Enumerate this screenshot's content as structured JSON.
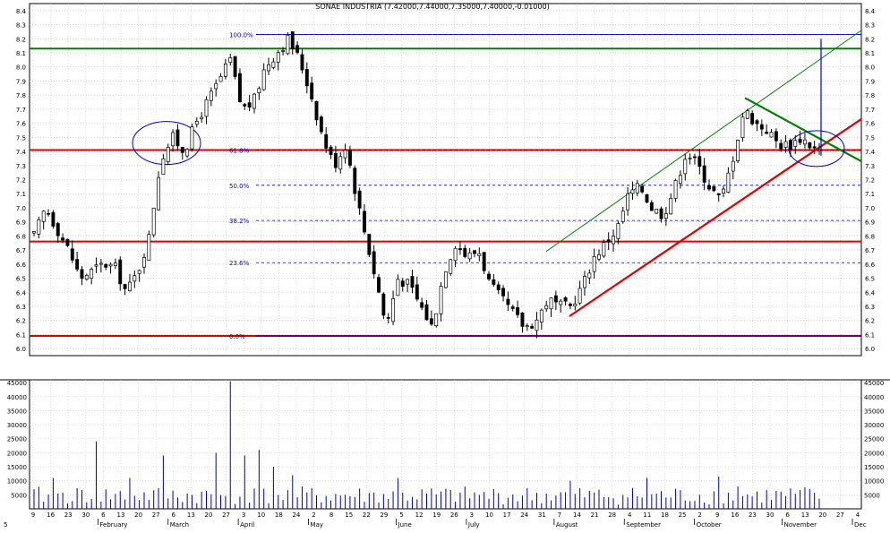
{
  "chart_data": [
    {
      "type": "candlestick",
      "title": "SONAE INDUSTRIA (7.42000,7.44000,7.35000,7.40000,-0.01000)",
      "ylim": [
        5.95,
        8.45
      ],
      "y_ticks": [
        "6.0",
        "6.1",
        "6.2",
        "6.3",
        "6.4",
        "6.5",
        "6.6",
        "6.7",
        "6.8",
        "6.9",
        "7.0",
        "7.1",
        "7.2",
        "7.3",
        "7.4",
        "7.5",
        "7.6",
        "7.7",
        "7.8",
        "7.9",
        "8.0",
        "8.1",
        "8.2",
        "8.3",
        "8.4"
      ],
      "axis_labels_both_sides": true,
      "grid": true,
      "x_start_label": "5",
      "days": [
        "9",
        "16",
        "23",
        "30",
        "6",
        "13",
        "20",
        "27",
        "6",
        "13",
        "20",
        "27",
        "3",
        "10",
        "18",
        "24",
        "2",
        "8",
        "15",
        "22",
        "29",
        "5",
        "12",
        "19",
        "26",
        "3",
        "10",
        "17",
        "24",
        "31",
        "7",
        "14",
        "21",
        "28",
        "4",
        "11",
        "18",
        "25",
        "2",
        "9",
        "16",
        "23",
        "30",
        "6",
        "13",
        "20",
        "27",
        "4"
      ],
      "months": [
        "February",
        "March",
        "April",
        "May",
        "June",
        "July",
        "August",
        "September",
        "October",
        "November",
        "Dec"
      ],
      "price_path": [
        [
          0,
          6.8
        ],
        [
          2,
          7.0
        ],
        [
          4,
          6.85
        ],
        [
          6,
          6.7
        ],
        [
          8,
          6.5
        ],
        [
          10,
          6.55
        ],
        [
          12,
          6.6
        ],
        [
          14,
          6.58
        ],
        [
          16,
          6.4
        ],
        [
          18,
          6.55
        ],
        [
          20,
          6.8
        ],
        [
          21,
          7.1
        ],
        [
          22,
          7.35
        ],
        [
          24,
          7.5
        ],
        [
          26,
          7.4
        ],
        [
          28,
          7.6
        ],
        [
          30,
          7.75
        ],
        [
          32,
          7.9
        ],
        [
          34,
          8.05
        ],
        [
          36,
          7.7
        ],
        [
          38,
          7.75
        ],
        [
          40,
          8.0
        ],
        [
          42,
          8.1
        ],
        [
          44,
          8.2
        ],
        [
          46,
          8.05
        ],
        [
          48,
          7.8
        ],
        [
          50,
          7.5
        ],
        [
          52,
          7.3
        ],
        [
          54,
          7.45
        ],
        [
          56,
          7.05
        ],
        [
          58,
          6.7
        ],
        [
          60,
          6.35
        ],
        [
          61,
          6.15
        ],
        [
          63,
          6.5
        ],
        [
          65,
          6.45
        ],
        [
          67,
          6.3
        ],
        [
          69,
          6.15
        ],
        [
          71,
          6.55
        ],
        [
          73,
          6.75
        ],
        [
          75,
          6.65
        ],
        [
          77,
          6.7
        ],
        [
          79,
          6.45
        ],
        [
          81,
          6.35
        ],
        [
          83,
          6.25
        ],
        [
          85,
          6.15
        ],
        [
          87,
          6.2
        ],
        [
          89,
          6.35
        ],
        [
          91,
          6.3
        ],
        [
          93,
          6.3
        ],
        [
          95,
          6.45
        ],
        [
          97,
          6.65
        ],
        [
          99,
          6.75
        ],
        [
          101,
          6.85
        ],
        [
          103,
          7.1
        ],
        [
          105,
          7.15
        ],
        [
          107,
          7.0
        ],
        [
          109,
          6.95
        ],
        [
          111,
          7.15
        ],
        [
          113,
          7.4
        ],
        [
          115,
          7.3
        ],
        [
          117,
          7.15
        ],
        [
          119,
          7.05
        ],
        [
          121,
          7.35
        ],
        [
          123,
          7.7
        ],
        [
          125,
          7.6
        ],
        [
          127,
          7.55
        ],
        [
          129,
          7.45
        ],
        [
          131,
          7.45
        ],
        [
          133,
          7.5
        ],
        [
          135,
          7.42
        ],
        [
          136,
          7.4
        ]
      ],
      "volume_max": 46000,
      "volume_ticks": [
        "5000",
        "10000",
        "15000",
        "20000",
        "25000",
        "30000",
        "35000",
        "40000",
        "45000"
      ],
      "fibonacci": [
        {
          "label": "100.0%",
          "value": 8.23
        },
        {
          "label": "61.8%",
          "value": 7.41
        },
        {
          "label": "50.0%",
          "value": 7.16
        },
        {
          "label": "38.2%",
          "value": 6.91
        },
        {
          "label": "23.6%",
          "value": 6.61
        },
        {
          "label": "0.0%",
          "value": 6.09
        }
      ],
      "horizontal_levels": [
        {
          "value": 8.13,
          "color": "#008000"
        },
        {
          "value": 7.41,
          "color": "#e00000"
        },
        {
          "value": 6.76,
          "color": "#e00000"
        },
        {
          "value": 6.09,
          "color": "#e00000"
        }
      ],
      "colors": {
        "support": "#e00000",
        "resistance": "#008000",
        "fibonacci": "#0000cc",
        "candles": "#000000",
        "volume": "#0000aa"
      }
    }
  ]
}
